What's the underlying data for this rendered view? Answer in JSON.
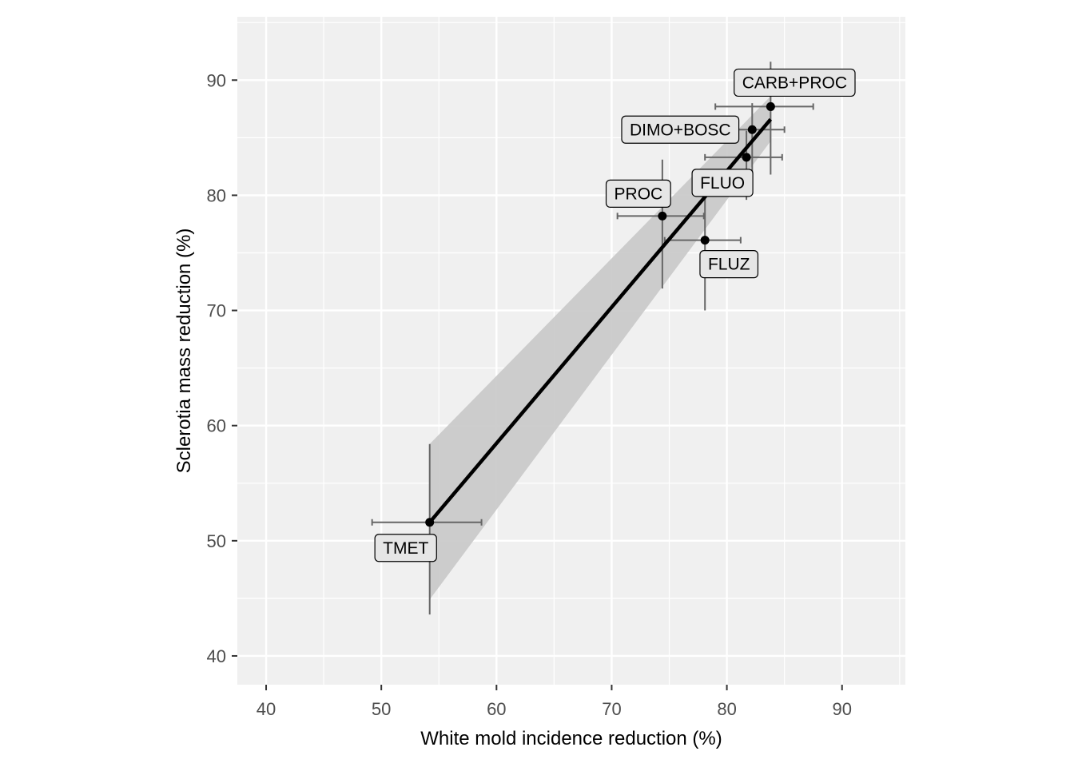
{
  "chart_data": {
    "type": "scatter",
    "title": "",
    "xlabel": "White mold incidence reduction (%)",
    "ylabel": "Sclerotia mass reduction (%)",
    "xlim": [
      37.5,
      95.5
    ],
    "ylim": [
      37.5,
      95.5
    ],
    "xticks": [
      40,
      50,
      60,
      70,
      80,
      90
    ],
    "yticks": [
      40,
      50,
      60,
      70,
      80,
      90
    ],
    "xtick_labels": [
      "40",
      "50",
      "60",
      "70",
      "80",
      "90"
    ],
    "ytick_labels": [
      "40",
      "50",
      "60",
      "70",
      "80",
      "90"
    ],
    "grid": true,
    "legend": "none",
    "points": [
      {
        "label": "TMET",
        "x": 54.2,
        "y": 51.6,
        "x_low": 49.2,
        "x_high": 58.7,
        "y_low": 43.6,
        "y_high": 58.4,
        "label_pos": "below-left"
      },
      {
        "label": "PROC",
        "x": 74.4,
        "y": 78.2,
        "x_low": 70.5,
        "x_high": 78.0,
        "y_low": 71.9,
        "y_high": 83.1,
        "label_pos": "above-left"
      },
      {
        "label": "FLUZ",
        "x": 78.1,
        "y": 76.1,
        "x_low": 74.6,
        "x_high": 81.2,
        "y_low": 70.0,
        "y_high": 81.4,
        "label_pos": "below-right"
      },
      {
        "label": "FLUO",
        "x": 81.7,
        "y": 83.3,
        "x_low": 78.1,
        "x_high": 84.8,
        "y_low": 79.6,
        "y_high": 85.6,
        "label_pos": "below-left"
      },
      {
        "label": "DIMO+BOSC",
        "x": 82.2,
        "y": 85.7,
        "x_low": 79.4,
        "x_high": 85.0,
        "y_low": 81.9,
        "y_high": 88.0,
        "label_pos": "left"
      },
      {
        "label": "CARB+PROC",
        "x": 83.8,
        "y": 87.7,
        "x_low": 79.0,
        "x_high": 87.5,
        "y_low": 81.8,
        "y_high": 91.6,
        "label_pos": "above-right"
      }
    ],
    "fit_line": {
      "x": [
        54.2,
        83.8
      ],
      "y": [
        51.6,
        86.6
      ]
    },
    "confidence_band": {
      "x": [
        54.2,
        83.8
      ],
      "upper": [
        58.4,
        88.6
      ],
      "lower": [
        44.9,
        84.7
      ]
    },
    "colors": {
      "panel": "#f0f0f0",
      "grid": "#ffffff",
      "band": "#c8c8c8",
      "line": "#000000",
      "errorbar": "#666666",
      "label_fill": "#e6e6e6"
    }
  }
}
